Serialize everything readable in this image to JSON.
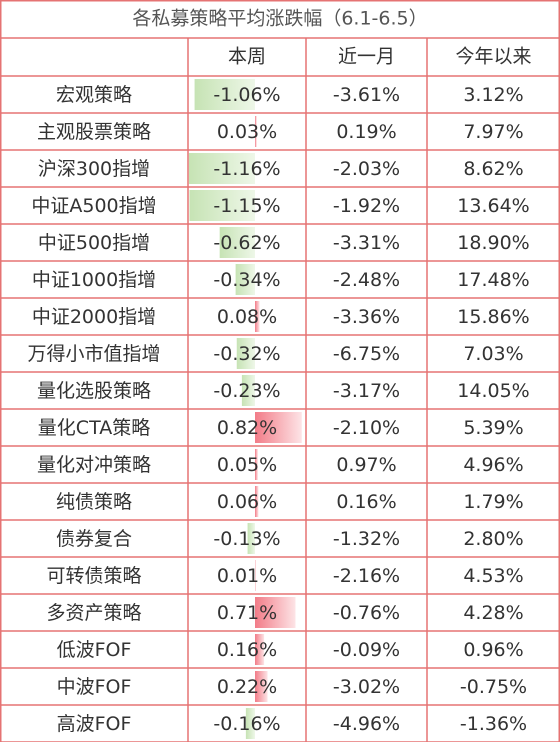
{
  "title": "各私募策略平均涨跌幅（6.1-6.5）",
  "columns": [
    "本周",
    "近一月",
    "今年以来"
  ],
  "rows": [
    {
      "label": "宏观策略",
      "week": -1.06,
      "week_label": "-1.06%",
      "month": "-3.61%",
      "ytd": "3.12%"
    },
    {
      "label": "主观股票策略",
      "week": 0.03,
      "week_label": "0.03%",
      "month": "0.19%",
      "ytd": "7.97%"
    },
    {
      "label": "沪深300指增",
      "week": -1.16,
      "week_label": "-1.16%",
      "month": "-2.03%",
      "ytd": "8.62%"
    },
    {
      "label": "中证A500指增",
      "week": -1.15,
      "week_label": "-1.15%",
      "month": "-1.92%",
      "ytd": "13.64%"
    },
    {
      "label": "中证500指增",
      "week": -0.62,
      "week_label": "-0.62%",
      "month": "-3.31%",
      "ytd": "18.90%"
    },
    {
      "label": "中证1000指增",
      "week": -0.34,
      "week_label": "-0.34%",
      "month": "-2.48%",
      "ytd": "17.48%"
    },
    {
      "label": "中证2000指增",
      "week": 0.08,
      "week_label": "0.08%",
      "month": "-3.36%",
      "ytd": "15.86%"
    },
    {
      "label": "万得小市值指增",
      "week": -0.32,
      "week_label": "-0.32%",
      "month": "-6.75%",
      "ytd": "7.03%"
    },
    {
      "label": "量化选股策略",
      "week": -0.23,
      "week_label": "-0.23%",
      "month": "-3.17%",
      "ytd": "14.05%"
    },
    {
      "label": "量化CTA策略",
      "week": 0.82,
      "week_label": "0.82%",
      "month": "-2.10%",
      "ytd": "5.39%"
    },
    {
      "label": "量化对冲策略",
      "week": 0.05,
      "week_label": "0.05%",
      "month": "0.97%",
      "ytd": "4.96%"
    },
    {
      "label": "纯债策略",
      "week": 0.06,
      "week_label": "0.06%",
      "month": "0.16%",
      "ytd": "1.79%"
    },
    {
      "label": "债券复合",
      "week": -0.13,
      "week_label": "-0.13%",
      "month": "-1.32%",
      "ytd": "2.80%"
    },
    {
      "label": "可转债策略",
      "week": 0.01,
      "week_label": "0.01%",
      "month": "-2.16%",
      "ytd": "4.53%"
    },
    {
      "label": "多资产策略",
      "week": 0.71,
      "week_label": "0.71%",
      "month": "-0.76%",
      "ytd": "4.28%"
    },
    {
      "label": "低波FOF",
      "week": 0.16,
      "week_label": "0.16%",
      "month": "-0.09%",
      "ytd": "0.96%"
    },
    {
      "label": "中波FOF",
      "week": 0.22,
      "week_label": "0.22%",
      "month": "-3.02%",
      "ytd": "-0.75%"
    },
    {
      "label": "高波FOF",
      "week": -0.16,
      "week_label": "-0.16%",
      "month": "-4.96%",
      "ytd": "-1.36%"
    }
  ]
}
